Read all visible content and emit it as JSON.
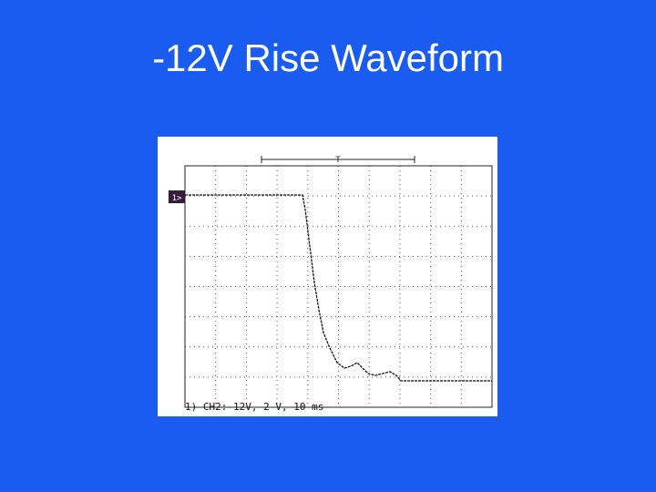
{
  "title": "-12V Rise Waveform",
  "scope": {
    "trigger_marker": "T",
    "channel_marker": "1>",
    "caption": "1) CH2:-12V, 2 V, 10 ms"
  }
}
